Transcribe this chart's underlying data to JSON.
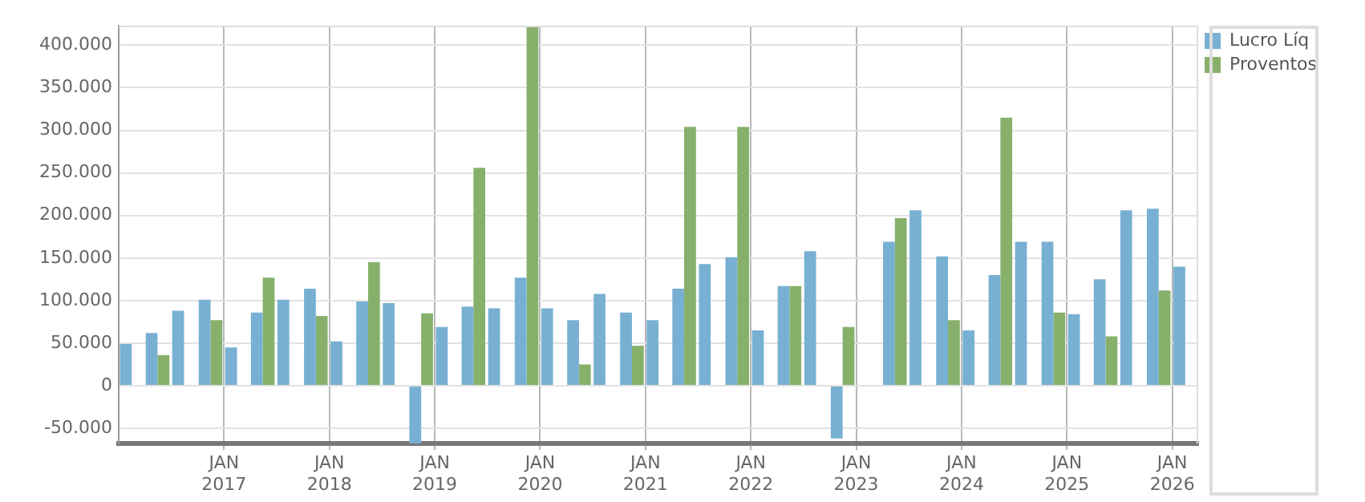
{
  "chart_data": {
    "type": "bar",
    "x": [
      "2016-02-15",
      "2016-05-15",
      "2016-08-15",
      "2016-11-15",
      "2017-02-15",
      "2017-05-15",
      "2017-08-15",
      "2017-11-15",
      "2018-02-15",
      "2018-05-15",
      "2018-08-15",
      "2018-11-15",
      "2019-02-15",
      "2019-05-15",
      "2019-08-15",
      "2019-11-15",
      "2020-02-15",
      "2020-05-15",
      "2020-08-15",
      "2020-11-15",
      "2021-02-15",
      "2021-05-15",
      "2021-08-15",
      "2021-11-15",
      "2022-02-15",
      "2022-05-15",
      "2022-08-15",
      "2022-11-15",
      "2023-02-15",
      "2023-05-15",
      "2023-08-15",
      "2023-11-15",
      "2024-02-15",
      "2024-05-15",
      "2024-08-15",
      "2024-11-15",
      "2025-02-15",
      "2025-05-15",
      "2025-08-15",
      "2025-11-15",
      "2026-02-15"
    ],
    "series": [
      {
        "name": "Lucro Líq",
        "color": "#78b0d3",
        "values": [
          49000,
          62000,
          88000,
          101000,
          45000,
          86000,
          101000,
          114000,
          52000,
          99000,
          97000,
          -68000,
          69000,
          93000,
          91000,
          127000,
          91000,
          77000,
          108000,
          86000,
          77000,
          114000,
          143000,
          151000,
          65000,
          117000,
          158000,
          -62000,
          null,
          169000,
          206000,
          152000,
          65000,
          130000,
          169000,
          169000,
          84000,
          125000,
          206000,
          208000,
          140000
        ]
      },
      {
        "name": "Proventos",
        "color": "#87b06b",
        "values": [
          0,
          36000,
          0,
          77000,
          0,
          127000,
          0,
          82000,
          0,
          145000,
          0,
          85000,
          0,
          256000,
          0,
          421000,
          0,
          25000,
          0,
          47000,
          0,
          304000,
          0,
          304000,
          0,
          117000,
          0,
          69000,
          null,
          197000,
          0,
          77000,
          0,
          315000,
          0,
          86000,
          0,
          58000,
          0,
          112000,
          0
        ]
      }
    ],
    "xlim": [
      "2016-01-01",
      "2026-04-01"
    ],
    "xticks": [
      {
        "value": "2017-01-01",
        "label": "JAN 2017"
      },
      {
        "value": "2018-01-01",
        "label": "JAN 2018"
      },
      {
        "value": "2019-01-01",
        "label": "JAN 2019"
      },
      {
        "value": "2020-01-01",
        "label": "JAN 2020"
      },
      {
        "value": "2021-01-01",
        "label": "JAN 2021"
      },
      {
        "value": "2022-01-01",
        "label": "JAN 2022"
      },
      {
        "value": "2023-01-01",
        "label": "JAN 2023"
      },
      {
        "value": "2024-01-01",
        "label": "JAN 2024"
      },
      {
        "value": "2025-01-01",
        "label": "JAN 2025"
      },
      {
        "value": "2026-01-01",
        "label": "JAN 2026"
      }
    ],
    "ylim": [
      -68000,
      423000
    ],
    "yticks": [
      {
        "value": -50000,
        "label": "-50.000"
      },
      {
        "value": 0,
        "label": "0"
      },
      {
        "value": 50000,
        "label": "50.000"
      },
      {
        "value": 100000,
        "label": "100.000"
      },
      {
        "value": 150000,
        "label": "150.000"
      },
      {
        "value": 200000,
        "label": "200.000"
      },
      {
        "value": 250000,
        "label": "250.000"
      },
      {
        "value": 300000,
        "label": "300.000"
      },
      {
        "value": 350000,
        "label": "350.000"
      },
      {
        "value": 400000,
        "label": "400.000"
      }
    ],
    "grid": true,
    "legend": "top right"
  }
}
